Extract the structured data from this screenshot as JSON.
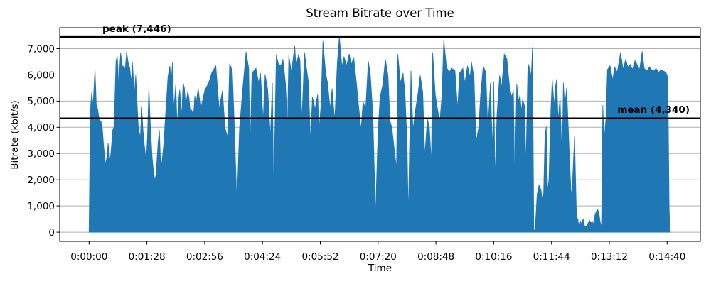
{
  "figure": {
    "title": "Stream Bitrate over Time",
    "xlabel": "Time",
    "ylabel": "Bitrate (kbit/s)"
  },
  "chart_data": {
    "type": "area",
    "title": "Stream Bitrate over Time",
    "xlabel": "Time",
    "ylabel": "Bitrate (kbit/s)",
    "legend": "none",
    "grid": true,
    "grid_axis": "y",
    "grid_color": "#b0b0b0",
    "fill_color": "#1f77b4",
    "spine_color": "#000000",
    "xlim": [
      -44.7,
      930.5
    ],
    "ylim": [
      -350,
      7800
    ],
    "x_tick_seconds": [
      0,
      88,
      176,
      264,
      352,
      440,
      528,
      616,
      704,
      792,
      880
    ],
    "x_tick_labels": [
      "0:00:00",
      "0:01:28",
      "0:02:56",
      "0:04:24",
      "0:05:52",
      "0:07:20",
      "0:08:48",
      "0:10:16",
      "0:11:44",
      "0:13:12",
      "0:14:40"
    ],
    "y_tick_values": [
      0,
      1000,
      2000,
      3000,
      4000,
      5000,
      6000,
      7000
    ],
    "y_tick_labels": [
      "0",
      "1,000",
      "2,000",
      "3,000",
      "4,000",
      "5,000",
      "6,000",
      "7,000"
    ],
    "hlines": [
      {
        "name": "peak",
        "label": "peak (7,446)",
        "value": 7446,
        "color": "#000000"
      },
      {
        "name": "mean",
        "label": "mean (4,340)",
        "value": 4340,
        "color": "#000000"
      }
    ],
    "series": [
      {
        "name": "bitrate_kbit_s",
        "x": [
          0,
          2,
          4,
          6,
          9,
          11,
          13,
          16,
          18,
          20,
          22,
          25,
          27,
          29,
          32,
          34,
          36,
          38,
          41,
          43,
          45,
          48,
          51,
          53,
          55,
          57,
          60,
          62,
          64,
          66,
          69,
          71,
          73,
          75,
          78,
          80,
          82,
          84,
          87,
          89,
          91,
          93,
          96,
          98,
          100,
          102,
          105,
          107,
          109,
          111,
          114,
          116,
          118,
          120,
          123,
          125,
          127,
          129,
          132,
          134,
          136,
          138,
          141,
          143,
          145,
          147,
          150,
          152,
          154,
          156,
          159,
          161,
          163,
          166,
          168,
          170,
          176,
          182,
          187,
          193,
          198,
          203,
          207,
          211,
          214,
          218,
          221,
          225,
          229,
          234,
          239,
          243,
          245,
          248,
          254,
          258,
          261,
          265,
          268,
          272,
          276,
          279,
          281,
          285,
          288,
          292,
          295,
          299,
          302,
          304,
          308,
          313,
          315,
          319,
          321,
          324,
          328,
          331,
          334,
          337,
          340,
          344,
          348,
          350,
          353,
          356,
          360,
          363,
          367,
          370,
          374,
          378,
          381,
          385,
          388,
          392,
          396,
          399,
          403,
          407,
          410,
          414,
          417,
          421,
          425,
          428,
          432,
          436,
          440,
          443,
          447,
          451,
          455,
          458,
          461,
          465,
          468,
          470,
          474,
          478,
          481,
          484,
          486,
          490,
          493,
          497,
          500,
          504,
          508,
          511,
          515,
          518,
          521,
          523,
          527,
          531,
          534,
          537,
          540,
          544,
          548,
          552,
          557,
          561,
          564,
          569,
          572,
          576,
          580,
          582,
          586,
          589,
          593,
          596,
          600,
          604,
          607,
          611,
          614,
          616,
          618,
          621,
          625,
          628,
          632,
          636,
          640,
          643,
          646,
          648,
          651,
          654,
          656,
          658,
          660,
          663,
          665,
          668,
          671,
          673,
          675,
          677,
          679,
          682,
          685,
          688,
          690,
          692,
          694,
          696,
          698,
          700,
          703,
          705,
          708,
          710,
          712,
          714,
          717,
          720,
          722,
          724,
          727,
          729,
          731,
          734,
          736,
          739,
          742,
          744,
          746,
          748,
          750,
          752,
          754,
          757,
          759,
          762,
          764,
          766,
          768,
          770,
          772,
          774,
          776,
          778,
          780,
          782,
          784,
          787,
          789,
          793,
          797,
          800,
          804,
          809,
          813,
          817,
          820,
          824,
          827,
          831,
          835,
          838,
          842,
          845,
          849,
          853,
          856,
          860,
          863,
          867,
          871,
          874,
          878,
          881,
          883,
          884,
          885
        ],
        "y": [
          80,
          4650,
          5350,
          4800,
          6230,
          4850,
          4700,
          4200,
          4250,
          4000,
          3350,
          2580,
          2850,
          3400,
          2700,
          3250,
          3900,
          4030,
          6550,
          6700,
          5600,
          6840,
          6300,
          6350,
          6200,
          6880,
          6400,
          6250,
          5700,
          6470,
          5250,
          6000,
          4970,
          3980,
          3600,
          4800,
          3900,
          3350,
          2710,
          3700,
          5580,
          4250,
          2850,
          2350,
          1990,
          2200,
          3400,
          3890,
          2530,
          2710,
          3430,
          4340,
          5070,
          5930,
          6340,
          5700,
          6470,
          4700,
          5660,
          3980,
          4980,
          5430,
          4430,
          5700,
          5520,
          4800,
          5340,
          5160,
          4610,
          4660,
          4480,
          5200,
          4900,
          5500,
          5100,
          4700,
          5400,
          5700,
          6100,
          6340,
          4700,
          5400,
          3980,
          3620,
          6430,
          6160,
          4160,
          1030,
          3980,
          5500,
          6880,
          6250,
          2980,
          6070,
          6250,
          5700,
          6070,
          4250,
          6020,
          5430,
          3620,
          5700,
          1440,
          6750,
          6430,
          6340,
          6600,
          5700,
          3980,
          6750,
          6100,
          7100,
          6340,
          6790,
          6570,
          4250,
          6860,
          6250,
          5700,
          3430,
          5160,
          4700,
          5250,
          3890,
          4800,
          7290,
          6100,
          5700,
          4700,
          5480,
          4250,
          6500,
          7446,
          6300,
          6700,
          6350,
          6800,
          6400,
          6650,
          5700,
          4890,
          3890,
          4980,
          4700,
          6520,
          6070,
          4500,
          625,
          3890,
          5160,
          5610,
          6600,
          5980,
          4250,
          3980,
          3070,
          2440,
          6790,
          5700,
          6070,
          5250,
          3430,
          580,
          6160,
          3890,
          4700,
          5160,
          5980,
          5340,
          2890,
          4340,
          3980,
          2620,
          6860,
          5250,
          4610,
          4250,
          5160,
          7345,
          6300,
          6100,
          6250,
          6160,
          4700,
          6070,
          6250,
          5700,
          6340,
          5900,
          6500,
          5900,
          3430,
          3980,
          5250,
          6340,
          6100,
          3890,
          5700,
          3070,
          5750,
          1990,
          4500,
          5980,
          5500,
          6790,
          6610,
          5570,
          5160,
          5400,
          1850,
          5660,
          4980,
          5250,
          4610,
          5070,
          4800,
          2440,
          6430,
          6250,
          5900,
          7059,
          100,
          60,
          1440,
          1800,
          1600,
          1200,
          1500,
          3710,
          4030,
          1530,
          1990,
          4660,
          5840,
          4800,
          5570,
          5840,
          4250,
          5160,
          2620,
          5700,
          4800,
          5500,
          4300,
          3000,
          1300,
          2000,
          3650,
          600,
          500,
          170,
          420,
          300,
          520,
          250,
          215,
          320,
          450,
          350,
          420,
          300,
          650,
          790,
          870,
          750,
          400,
          180,
          4850,
          3500,
          4400,
          6200,
          6350,
          5800,
          6300,
          6100,
          6850,
          6200,
          6600,
          6300,
          6400,
          6200,
          6550,
          6350,
          6200,
          6900,
          6250,
          6150,
          6300,
          6200,
          6150,
          6250,
          6100,
          6200,
          6150,
          6100,
          5900,
          1000,
          150,
          0
        ]
      }
    ]
  }
}
